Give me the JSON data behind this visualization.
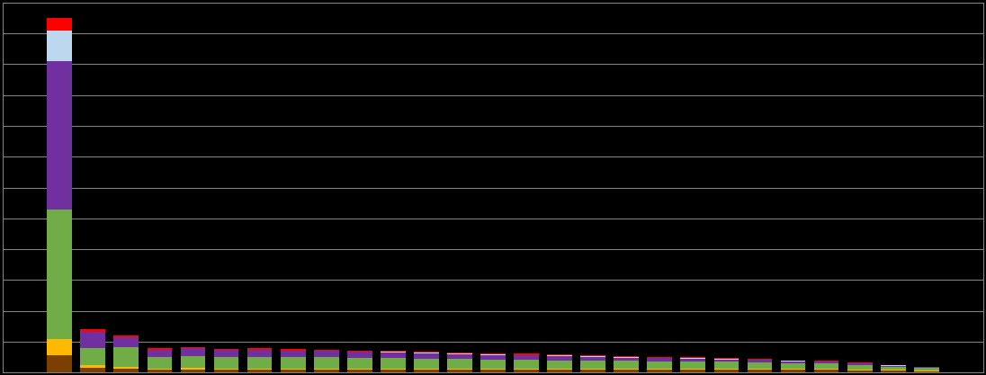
{
  "colors": [
    "#7B3F00",
    "#FFB900",
    "#70AD47",
    "#7030A0",
    "#BDD7EE",
    "#FF0000"
  ],
  "background_color": "#000000",
  "grid_color": "#808080",
  "bar_width": 0.75,
  "values": [
    [
      5500,
      5500,
      42000,
      48000,
      10000,
      4000
    ],
    [
      1500,
      800,
      5500,
      5500,
      0,
      700
    ],
    [
      1200,
      600,
      6500,
      3200,
      0,
      600
    ],
    [
      900,
      400,
      3800,
      2200,
      0,
      500
    ],
    [
      900,
      500,
      4000,
      2500,
      0,
      450
    ],
    [
      900,
      450,
      3700,
      2200,
      0,
      430
    ],
    [
      900,
      450,
      3800,
      2300,
      0,
      430
    ],
    [
      900,
      450,
      3700,
      2100,
      0,
      420
    ],
    [
      900,
      450,
      3600,
      2000,
      0,
      400
    ],
    [
      900,
      430,
      3400,
      1900,
      0,
      380
    ],
    [
      900,
      420,
      3300,
      1800,
      350,
      370
    ],
    [
      900,
      420,
      3200,
      1700,
      300,
      360
    ],
    [
      900,
      400,
      3000,
      1600,
      300,
      350
    ],
    [
      900,
      400,
      2900,
      1500,
      250,
      340
    ],
    [
      900,
      380,
      2800,
      1400,
      250,
      330
    ],
    [
      900,
      380,
      2700,
      1300,
      200,
      320
    ],
    [
      900,
      370,
      2600,
      1200,
      200,
      310
    ],
    [
      900,
      360,
      2500,
      1100,
      200,
      300
    ],
    [
      900,
      350,
      2400,
      1000,
      150,
      290
    ],
    [
      900,
      340,
      2300,
      950,
      150,
      270
    ],
    [
      900,
      330,
      2200,
      850,
      150,
      260
    ],
    [
      900,
      320,
      2100,
      750,
      100,
      250
    ],
    [
      800,
      300,
      1900,
      650,
      100,
      220
    ],
    [
      800,
      290,
      1800,
      600,
      100,
      200
    ],
    [
      700,
      250,
      1500,
      500,
      80,
      170
    ],
    [
      600,
      200,
      1100,
      350,
      60,
      120
    ],
    [
      500,
      160,
      850,
      280,
      40,
      90
    ]
  ],
  "ylim": [
    0,
    120000
  ],
  "n_gridlines": 12
}
